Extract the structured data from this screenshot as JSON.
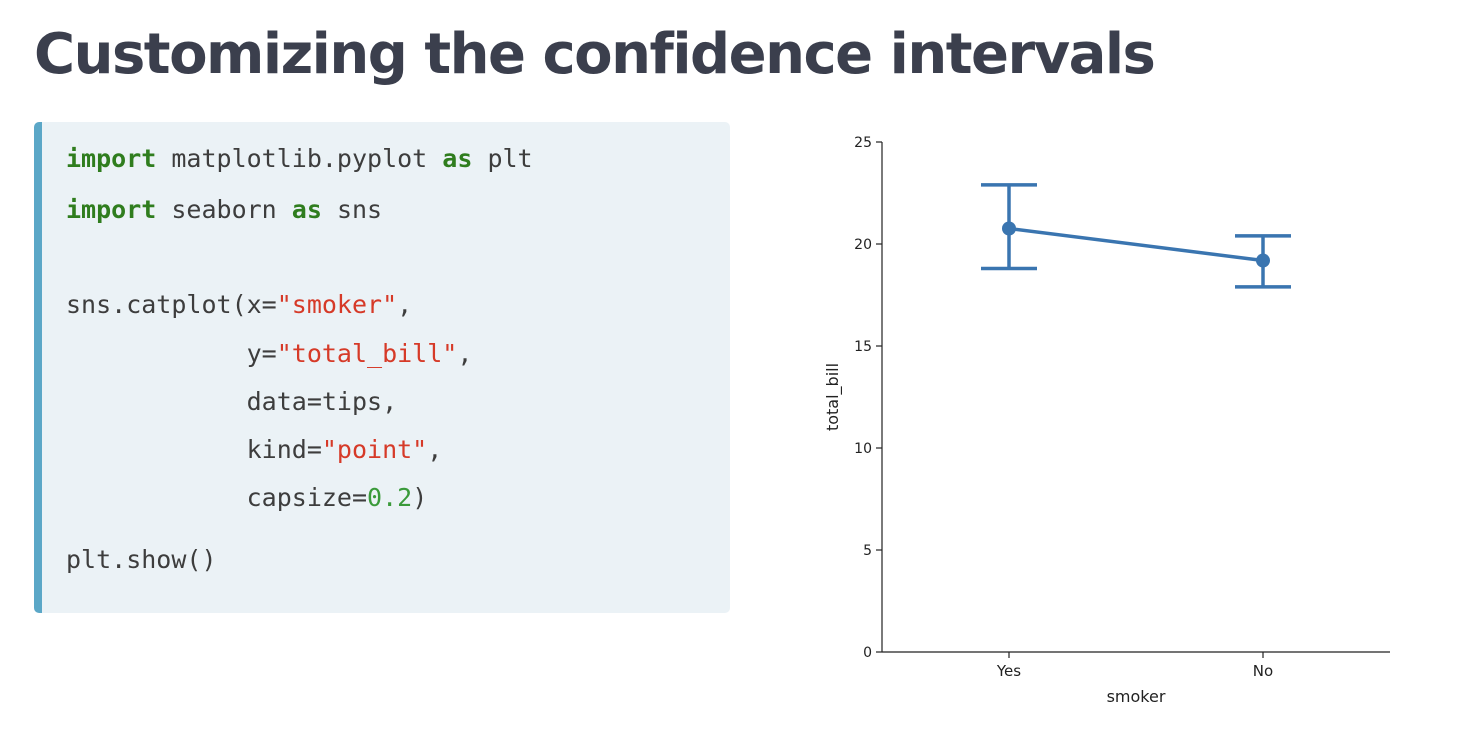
{
  "page": {
    "title": "Customizing the confidence intervals"
  },
  "code": {
    "line1": {
      "kw1": "import",
      "mod": " matplotlib.pyplot ",
      "kw2": "as",
      "alias": " plt"
    },
    "line2": {
      "kw1": "import",
      "mod": " seaborn ",
      "kw2": "as",
      "alias": " sns"
    },
    "line3": {
      "pre": "sns.catplot(x=",
      "str": "\"smoker\"",
      "post": ","
    },
    "line4": {
      "pre": "            y=",
      "str": "\"total_bill\"",
      "post": ","
    },
    "line5": {
      "text": "            data=tips,"
    },
    "line6": {
      "pre": "            kind=",
      "str": "\"point\"",
      "post": ","
    },
    "line7": {
      "pre": "            capsize=",
      "num": "0.2",
      "post": ")"
    },
    "line8": {
      "text": "plt.show()"
    }
  },
  "colors": {
    "series": "#3a75b0",
    "keyword": "#2f7d1e",
    "string": "#d63a28",
    "number": "#3a9a3a",
    "code_background": "#ebf2f6",
    "code_border": "#5ba7c7"
  },
  "chart_data": {
    "type": "line",
    "xlabel": "smoker",
    "ylabel": "total_bill",
    "categories": [
      "Yes",
      "No"
    ],
    "values": [
      20.76,
      19.19
    ],
    "ci_low": [
      18.8,
      17.9
    ],
    "ci_high": [
      22.9,
      20.4
    ],
    "ylim": [
      0,
      25
    ],
    "yticks": [
      0,
      5,
      10,
      15,
      20,
      25
    ],
    "grid": false,
    "legend": "none"
  }
}
